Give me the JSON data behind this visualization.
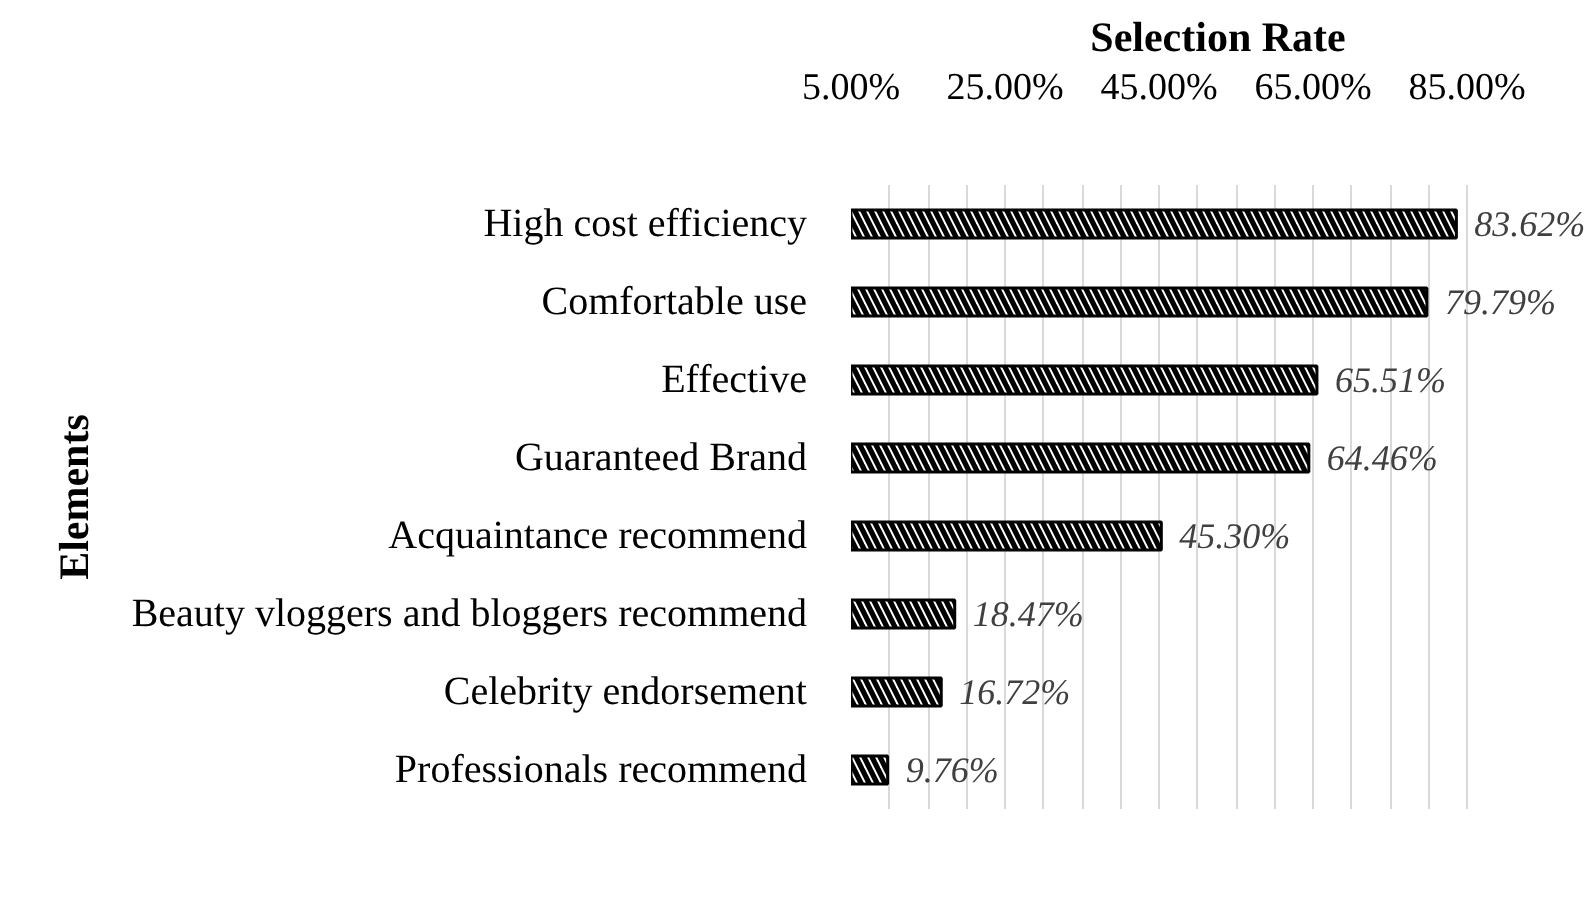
{
  "chart_data": {
    "type": "bar",
    "orientation": "horizontal",
    "xlabel": "Selection Rate",
    "ylabel": "Elements",
    "categories": [
      "High cost efficiency",
      "Comfortable use",
      "Effective",
      "Guaranteed Brand",
      "Acquaintance recommend",
      "Beauty vloggers and bloggers recommend",
      "Celebrity endorsement",
      "Professionals recommend"
    ],
    "values": [
      83.62,
      79.79,
      65.51,
      64.46,
      45.3,
      18.47,
      16.72,
      9.76
    ],
    "value_labels": [
      "83.62%",
      "79.79%",
      "65.51%",
      "64.46%",
      "45.30%",
      "18.47%",
      "16.72%",
      "9.76%"
    ],
    "color": "#000000",
    "xlim": [
      5,
      85
    ],
    "xticks": [
      {
        "value": 5,
        "label": "5.00%"
      },
      {
        "value": 10,
        "label": null
      },
      {
        "value": 15,
        "label": null
      },
      {
        "value": 20,
        "label": null
      },
      {
        "value": 25,
        "label": "25.00%"
      },
      {
        "value": 30,
        "label": null
      },
      {
        "value": 35,
        "label": null
      },
      {
        "value": 40,
        "label": null
      },
      {
        "value": 45,
        "label": "45.00%"
      },
      {
        "value": 50,
        "label": null
      },
      {
        "value": 55,
        "label": null
      },
      {
        "value": 60,
        "label": null
      },
      {
        "value": 65,
        "label": "65.00%"
      },
      {
        "value": 70,
        "label": null
      },
      {
        "value": 75,
        "label": null
      },
      {
        "value": 80,
        "label": null
      },
      {
        "value": 85,
        "label": "85.00%"
      }
    ],
    "grid": "x"
  }
}
